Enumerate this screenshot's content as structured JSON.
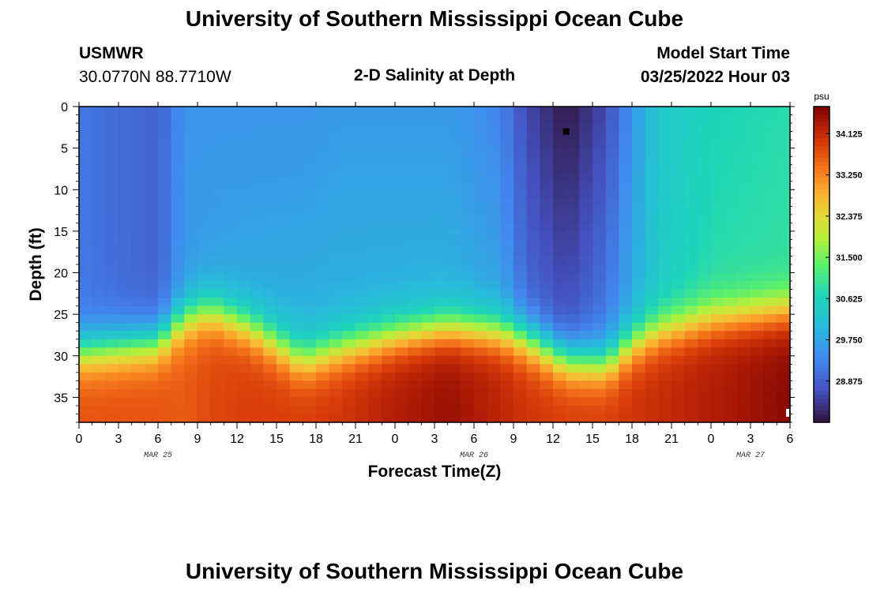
{
  "header": {
    "title": "University of Southern Mississippi Ocean Cube",
    "station": "USMWR",
    "coords": "30.0770N  88.7710W",
    "plot_title": "2-D Salinity at Depth",
    "model_label": "Model Start Time",
    "model_time": "03/25/2022 Hour 03"
  },
  "footer": {
    "title": "University of Southern Mississippi Ocean Cube"
  },
  "chart_data": {
    "type": "heatmap",
    "title": "2-D Salinity at Depth",
    "xlabel": "Forecast Time(Z)",
    "ylabel": "Depth (ft)",
    "x_ticks": [
      "0",
      "3",
      "6",
      "9",
      "12",
      "15",
      "18",
      "21",
      "0",
      "3",
      "6",
      "9",
      "12",
      "15",
      "18",
      "21",
      "0",
      "3",
      "6"
    ],
    "date_labels": [
      {
        "label": "MAR 25",
        "at_hour": 6
      },
      {
        "label": "MAR 26",
        "at_hour": 30
      },
      {
        "label": "MAR 27",
        "at_hour": 51
      }
    ],
    "x_range_hours": [
      0,
      54
    ],
    "y_ticks": [
      0,
      5,
      10,
      15,
      20,
      25,
      30,
      35
    ],
    "ylim": [
      0,
      38
    ],
    "y_inverted": true,
    "colorbar": {
      "unit": "psu",
      "ticks": [
        "34.125",
        "33.250",
        "32.375",
        "31.500",
        "30.625",
        "29.750",
        "28.875"
      ],
      "range": [
        28.0,
        34.7
      ]
    },
    "marker": {
      "hour": 37,
      "depth_ft": 3
    },
    "grid": {
      "hours_step": 1,
      "depth_step_ft": 1
    },
    "salinity_profiles": [
      {
        "hour": 0,
        "surface": 29.15,
        "mid": 29.15,
        "halocline_ft": 29.5,
        "bottom": 33.7
      },
      {
        "hour": 6,
        "surface": 28.9,
        "mid": 28.9,
        "halocline_ft": 28.5,
        "bottom": 33.7
      },
      {
        "hour": 8,
        "surface": 29.5,
        "mid": 29.6,
        "halocline_ft": 25.5,
        "bottom": 33.6
      },
      {
        "hour": 10,
        "surface": 29.5,
        "mid": 29.7,
        "halocline_ft": 24.5,
        "bottom": 33.8
      },
      {
        "hour": 13,
        "surface": 29.5,
        "mid": 29.8,
        "halocline_ft": 26.5,
        "bottom": 33.9
      },
      {
        "hour": 17,
        "surface": 29.5,
        "mid": 29.9,
        "halocline_ft": 30.5,
        "bottom": 33.9
      },
      {
        "hour": 20,
        "surface": 29.6,
        "mid": 29.9,
        "halocline_ft": 29.0,
        "bottom": 34.0
      },
      {
        "hour": 24,
        "surface": 29.6,
        "mid": 29.9,
        "halocline_ft": 27.5,
        "bottom": 34.3
      },
      {
        "hour": 28,
        "surface": 29.6,
        "mid": 29.9,
        "halocline_ft": 26.5,
        "bottom": 34.5
      },
      {
        "hour": 32,
        "surface": 29.3,
        "mid": 29.7,
        "halocline_ft": 27.0,
        "bottom": 34.2
      },
      {
        "hour": 34,
        "surface": 28.6,
        "mid": 29.0,
        "halocline_ft": 28.0,
        "bottom": 34.0
      },
      {
        "hour": 37,
        "surface": 28.05,
        "mid": 28.7,
        "halocline_ft": 30.5,
        "bottom": 33.9
      },
      {
        "hour": 40,
        "surface": 28.6,
        "mid": 29.2,
        "halocline_ft": 31.0,
        "bottom": 33.9
      },
      {
        "hour": 42,
        "surface": 29.5,
        "mid": 29.8,
        "halocline_ft": 28.5,
        "bottom": 34.0
      },
      {
        "hour": 44,
        "surface": 30.3,
        "mid": 30.4,
        "halocline_ft": 27.0,
        "bottom": 34.1
      },
      {
        "hour": 48,
        "surface": 30.65,
        "mid": 30.8,
        "halocline_ft": 25.5,
        "bottom": 34.3
      },
      {
        "hour": 54,
        "surface": 30.8,
        "mid": 30.9,
        "halocline_ft": 24.5,
        "bottom": 34.6
      }
    ]
  }
}
